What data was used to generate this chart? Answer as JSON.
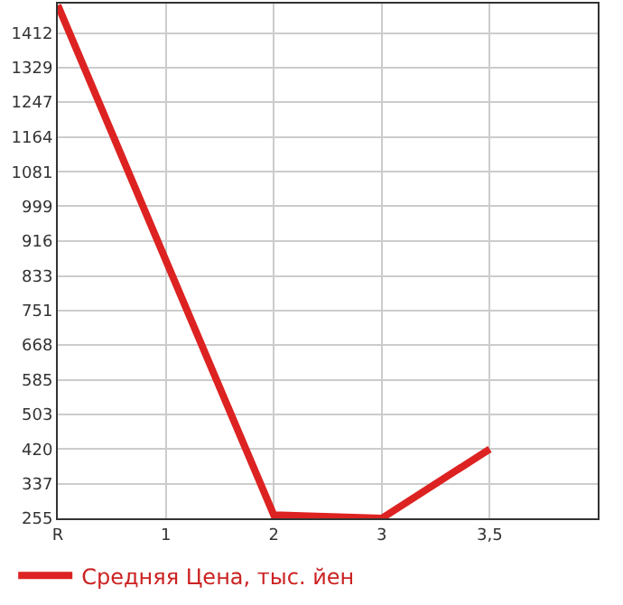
{
  "chart_data": {
    "type": "line",
    "categories": [
      "R",
      "1",
      "2",
      "3",
      "3,5"
    ],
    "series": [
      {
        "name": "Средняя Цена, тыс. йен",
        "color": "#dd2222",
        "values": [
          1478,
          null,
          263,
          255,
          420
        ]
      }
    ],
    "ylim": [
      255,
      1482
    ],
    "yticks": [
      255,
      337,
      420,
      503,
      585,
      668,
      751,
      833,
      916,
      999,
      1081,
      1164,
      1247,
      1329,
      1412
    ],
    "grid": true,
    "legend": "bottom",
    "marker": "none",
    "line_style": "solid"
  }
}
